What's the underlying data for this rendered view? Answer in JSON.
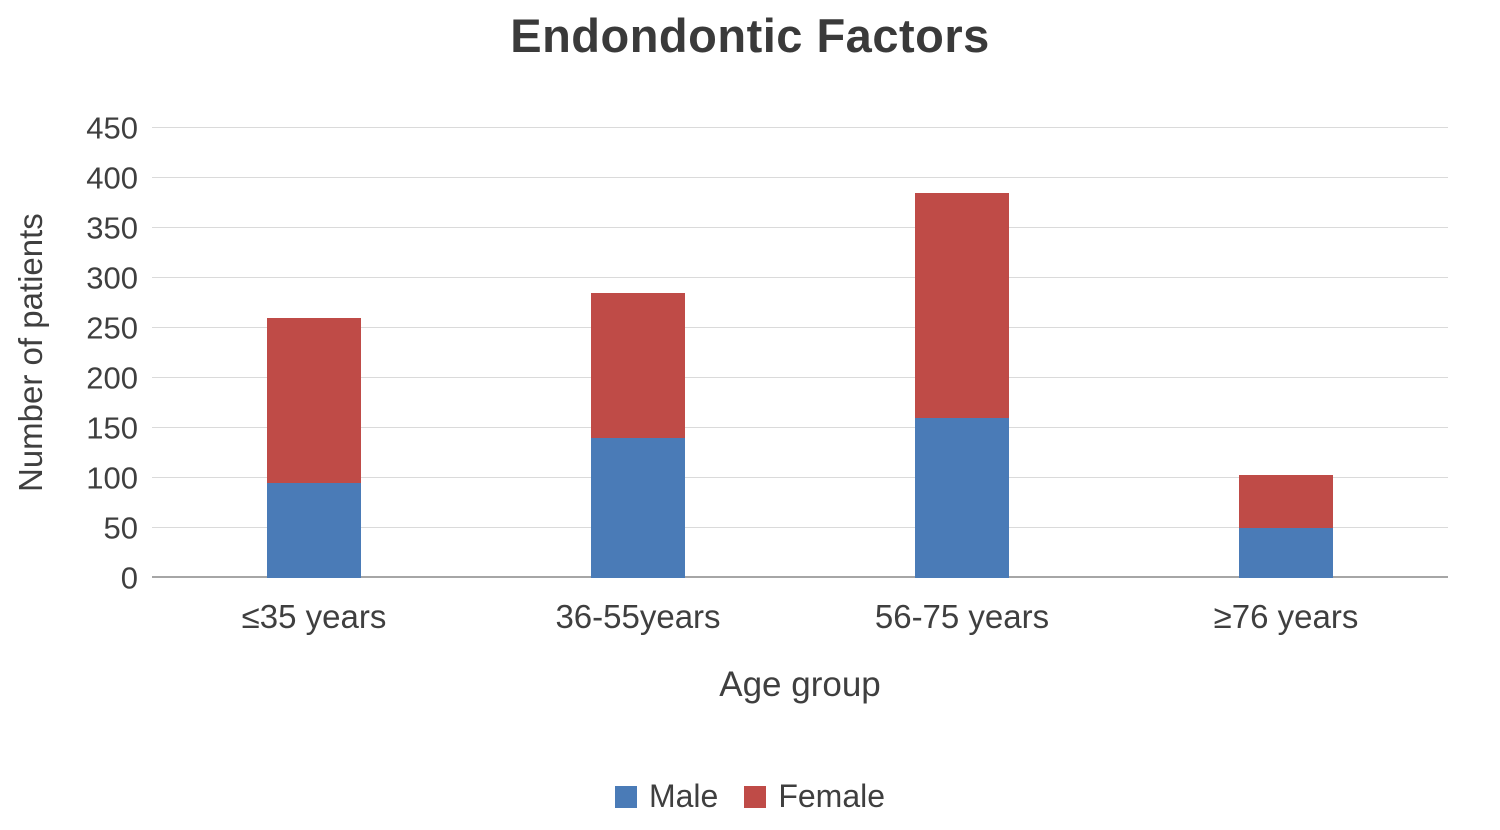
{
  "title": "Endondontic Factors",
  "chart_data": {
    "type": "bar",
    "stacked": true,
    "title": "Endondontic Factors",
    "categories": [
      "≤35 years",
      "36-55years",
      "56-75 years",
      "≥76 years"
    ],
    "series": [
      {
        "name": "Male",
        "color": "#4a7bb7",
        "values": [
          95,
          140,
          160,
          50
        ]
      },
      {
        "name": "Female",
        "color": "#bf4b47",
        "values": [
          165,
          145,
          225,
          53
        ]
      }
    ],
    "totals": [
      260,
      285,
      385,
      103
    ],
    "xlabel": "Age group",
    "ylabel": "Number of patients",
    "ylim": [
      0,
      450
    ],
    "ytick_step": 50,
    "yticks": [
      0,
      50,
      100,
      150,
      200,
      250,
      300,
      350,
      400,
      450
    ],
    "grid": true,
    "legend_position": "bottom"
  }
}
